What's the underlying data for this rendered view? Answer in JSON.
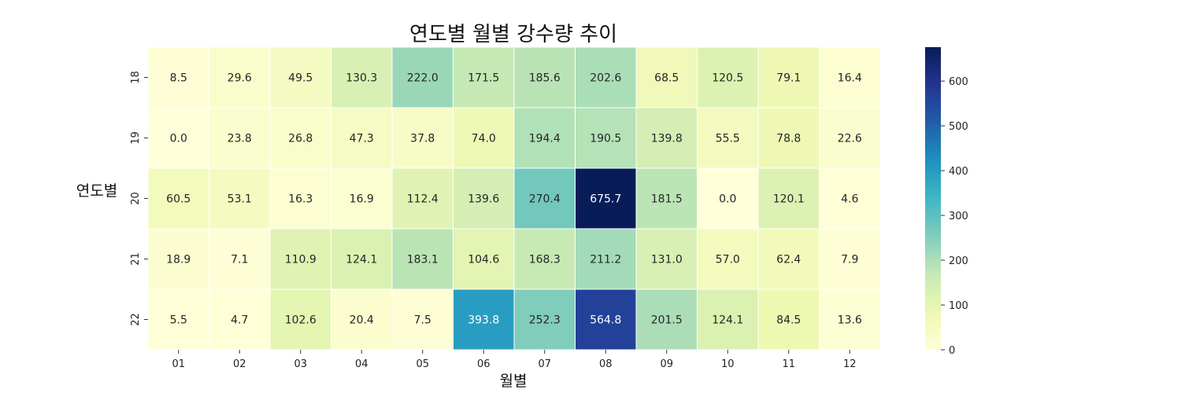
{
  "chart_data": {
    "type": "heatmap",
    "title": "연도별 월별 강수량 추이",
    "xlabel": "월별",
    "ylabel": "연도별",
    "x_categories": [
      "01",
      "02",
      "03",
      "04",
      "05",
      "06",
      "07",
      "08",
      "09",
      "10",
      "11",
      "12"
    ],
    "y_categories": [
      "18",
      "19",
      "20",
      "21",
      "22"
    ],
    "values": [
      [
        8.5,
        29.6,
        49.5,
        130.3,
        222.0,
        171.5,
        185.6,
        202.6,
        68.5,
        120.5,
        79.1,
        16.4
      ],
      [
        0.0,
        23.8,
        26.8,
        47.3,
        37.8,
        74.0,
        194.4,
        190.5,
        139.8,
        55.5,
        78.8,
        22.6
      ],
      [
        60.5,
        53.1,
        16.3,
        16.9,
        112.4,
        139.6,
        270.4,
        675.7,
        181.5,
        0.0,
        120.1,
        4.6
      ],
      [
        18.9,
        7.1,
        110.9,
        124.1,
        183.1,
        104.6,
        168.3,
        211.2,
        131.0,
        57.0,
        62.4,
        7.9
      ],
      [
        5.5,
        4.7,
        102.6,
        20.4,
        7.5,
        393.8,
        252.3,
        564.8,
        201.5,
        124.1,
        84.5,
        13.6
      ]
    ],
    "value_format": "0.1f",
    "colormap": "YlGnBu",
    "vmin": 0,
    "vmax": 675.7,
    "colorbar_ticks": [
      0,
      100,
      200,
      300,
      400,
      500,
      600
    ],
    "cell_border_color": "#ffffff"
  }
}
